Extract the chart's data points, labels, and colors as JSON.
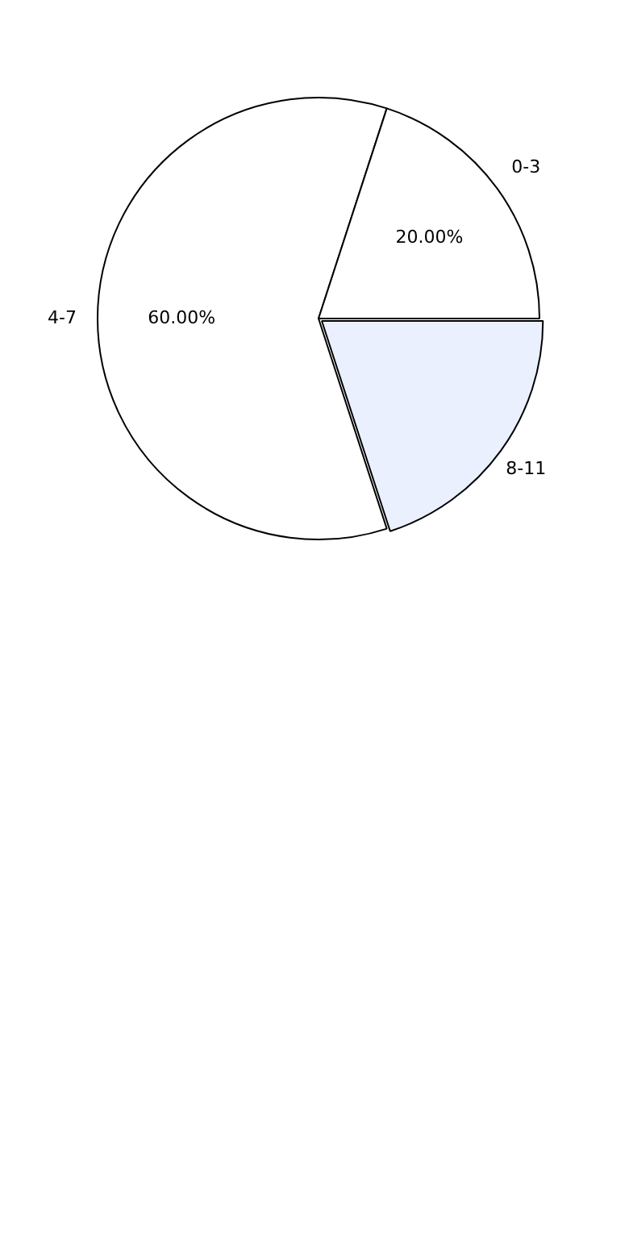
{
  "chart_data": {
    "type": "pie",
    "categories": [
      "8-11",
      "4-7",
      "0-3"
    ],
    "values": [
      20,
      60,
      20
    ],
    "colors": [
      "#eaf0fe",
      "#ffffff",
      "#ffffff"
    ],
    "value_labels": [
      null,
      "60.00%",
      "20.00%"
    ],
    "legend": false
  }
}
